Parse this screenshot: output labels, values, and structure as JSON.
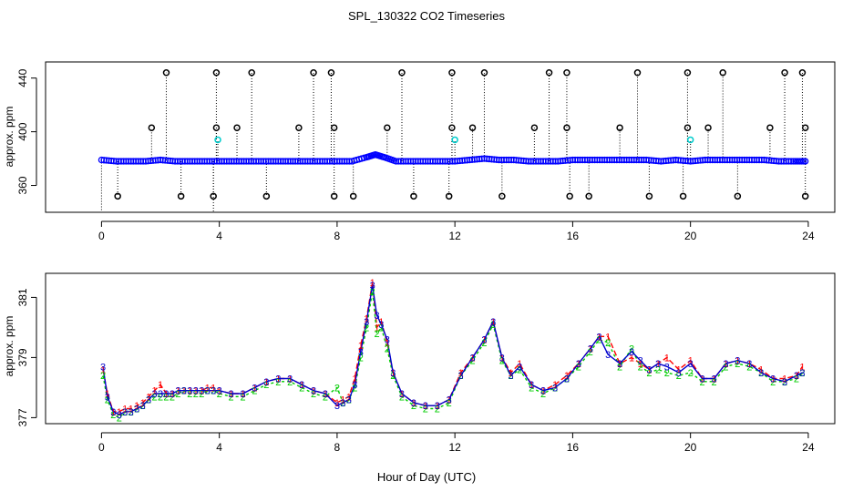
{
  "chart_data": [
    {
      "type": "scatter",
      "panel": "top",
      "title": "SPL_130322  CO2 Timeseries",
      "xlabel": "",
      "ylabel": "approx. ppm",
      "xlim": [
        -1.9,
        24.9
      ],
      "ylim": [
        340,
        452
      ],
      "xticks": [
        0,
        4,
        8,
        12,
        16,
        20,
        24
      ],
      "xtick_labels": [
        "0",
        "4",
        "8",
        "12",
        "16",
        "20",
        "24"
      ],
      "yticks": [
        360,
        400,
        440
      ],
      "ytick_labels": [
        "360",
        "400",
        "440"
      ],
      "grid": false,
      "colors": {
        "baseline": "#0000ff",
        "upper": "#000000",
        "mid_upper": "#000000",
        "lower": "#000000",
        "mid_alt": "#00cccc",
        "drop": "#000000"
      },
      "series": [
        {
          "name": "baseline",
          "x": [
            0.0,
            0.5,
            1.0,
            1.5,
            2.0,
            2.5,
            3.0,
            3.5,
            4.0,
            4.5,
            5.0,
            5.5,
            6.0,
            6.5,
            7.0,
            7.5,
            8.0,
            8.5,
            9.0,
            9.3,
            9.6,
            10.0,
            10.5,
            11.0,
            11.5,
            12.0,
            12.5,
            13.0,
            13.5,
            14.0,
            14.5,
            15.0,
            15.5,
            16.0,
            16.5,
            17.0,
            17.5,
            18.0,
            18.5,
            19.0,
            19.5,
            20.0,
            20.5,
            21.0,
            21.5,
            22.0,
            22.5,
            23.0,
            23.5,
            23.9
          ],
          "values": [
            379,
            378,
            378,
            378,
            379,
            378,
            378,
            378,
            378,
            378,
            378,
            378,
            378,
            378,
            378,
            378,
            378,
            378,
            381,
            383,
            381,
            378,
            378,
            378,
            378,
            378,
            379,
            380,
            379,
            379,
            378,
            378,
            378,
            379,
            379,
            379,
            379,
            379,
            379,
            378,
            379,
            378,
            379,
            379,
            379,
            379,
            379,
            378,
            378,
            378
          ]
        },
        {
          "name": "upper",
          "x": [
            2.2,
            3.9,
            5.1,
            7.2,
            7.8,
            10.2,
            11.9,
            13.0,
            15.2,
            15.8,
            18.2,
            19.9,
            21.1,
            23.2,
            23.8
          ],
          "values": [
            444,
            444,
            444,
            444,
            444,
            444,
            444,
            444,
            444,
            444,
            444,
            444,
            444,
            444,
            444
          ]
        },
        {
          "name": "mid_upper",
          "x": [
            1.7,
            3.9,
            4.6,
            6.7,
            7.9,
            9.7,
            11.9,
            12.6,
            14.7,
            15.8,
            17.6,
            19.9,
            20.6,
            22.7,
            23.9
          ],
          "values": [
            403,
            403,
            403,
            403,
            403,
            403,
            403,
            403,
            403,
            403,
            403,
            403,
            403,
            403,
            403
          ]
        },
        {
          "name": "mid_alt",
          "x": [
            3.95,
            12.0,
            20.0
          ],
          "values": [
            394,
            394,
            394
          ]
        },
        {
          "name": "lower",
          "x": [
            0.55,
            2.7,
            3.8,
            5.6,
            7.9,
            8.55,
            10.6,
            11.8,
            13.6,
            15.9,
            16.55,
            18.6,
            19.75,
            21.6,
            23.9
          ],
          "values": [
            352,
            352,
            352,
            352,
            352,
            352,
            352,
            352,
            352,
            352,
            352,
            352,
            352,
            352,
            352
          ]
        },
        {
          "name": "drop",
          "x": [
            0.0,
            3.8
          ],
          "values": [
            340,
            340
          ]
        }
      ]
    },
    {
      "type": "line",
      "panel": "bottom",
      "title": "",
      "xlabel": "Hour of Day (UTC)",
      "ylabel": "approx. ppm",
      "xlim": [
        -1.9,
        24.9
      ],
      "ylim": [
        376.8,
        381.8
      ],
      "xticks": [
        0,
        4,
        8,
        12,
        16,
        20,
        24
      ],
      "xtick_labels": [
        "0",
        "4",
        "8",
        "12",
        "16",
        "20",
        "24"
      ],
      "yticks": [
        377,
        379,
        381
      ],
      "ytick_labels": [
        "377",
        "379",
        "381"
      ],
      "grid": false,
      "colors": {
        "1": "#ff0000",
        "2": "#00cc00",
        "3": "#0000cc"
      },
      "x": [
        0.05,
        0.2,
        0.4,
        0.6,
        0.8,
        1.0,
        1.2,
        1.4,
        1.6,
        1.8,
        2.0,
        2.2,
        2.4,
        2.6,
        2.8,
        3.0,
        3.2,
        3.4,
        3.6,
        3.8,
        4.0,
        4.4,
        4.8,
        5.2,
        5.6,
        6.0,
        6.4,
        6.8,
        7.2,
        7.6,
        8.0,
        8.2,
        8.4,
        8.6,
        8.8,
        9.0,
        9.2,
        9.35,
        9.5,
        9.7,
        9.9,
        10.2,
        10.6,
        11.0,
        11.4,
        11.8,
        12.2,
        12.6,
        13.0,
        13.3,
        13.6,
        13.9,
        14.2,
        14.6,
        15.0,
        15.4,
        15.8,
        16.2,
        16.6,
        16.9,
        17.2,
        17.6,
        18.0,
        18.3,
        18.6,
        18.9,
        19.2,
        19.6,
        20.0,
        20.4,
        20.8,
        21.2,
        21.6,
        22.0,
        22.4,
        22.8,
        23.2,
        23.6,
        23.8
      ],
      "series": [
        {
          "name": "1",
          "label": "1",
          "values": [
            378.6,
            377.8,
            377.2,
            377.2,
            377.3,
            377.3,
            377.4,
            377.5,
            377.7,
            377.9,
            378.1,
            377.8,
            377.8,
            377.9,
            377.9,
            377.9,
            377.9,
            377.9,
            378.0,
            378.0,
            377.9,
            377.8,
            377.8,
            378.0,
            378.2,
            378.3,
            378.3,
            378.1,
            377.9,
            377.8,
            377.5,
            377.6,
            377.7,
            378.3,
            379.4,
            380.3,
            381.5,
            380.0,
            380.2,
            379.5,
            378.5,
            377.8,
            377.5,
            377.4,
            377.4,
            377.6,
            378.5,
            379.0,
            379.6,
            380.2,
            379.0,
            378.5,
            378.8,
            378.1,
            377.9,
            378.1,
            378.4,
            378.8,
            379.3,
            379.7,
            379.7,
            378.8,
            379.0,
            378.8,
            378.6,
            378.8,
            379.0,
            378.6,
            378.9,
            378.3,
            378.3,
            378.8,
            378.9,
            378.8,
            378.6,
            378.3,
            378.3,
            378.4,
            378.7
          ]
        },
        {
          "name": "2",
          "label": "2",
          "values": [
            378.4,
            377.6,
            377.1,
            377.0,
            377.2,
            377.2,
            377.3,
            377.4,
            377.6,
            377.7,
            377.7,
            377.7,
            377.7,
            377.8,
            377.9,
            377.8,
            377.8,
            377.8,
            377.9,
            377.9,
            377.8,
            377.7,
            377.7,
            377.9,
            378.1,
            378.2,
            378.2,
            378.0,
            377.8,
            377.7,
            378.0,
            377.5,
            377.6,
            378.0,
            379.0,
            380.0,
            381.2,
            379.8,
            380.0,
            379.3,
            378.4,
            377.7,
            377.4,
            377.3,
            377.3,
            377.5,
            378.4,
            378.9,
            379.5,
            380.1,
            378.9,
            378.4,
            378.6,
            378.0,
            377.8,
            378.0,
            378.3,
            378.7,
            379.2,
            379.6,
            379.5,
            378.7,
            379.3,
            378.7,
            378.5,
            378.6,
            378.5,
            378.4,
            378.5,
            378.2,
            378.2,
            378.7,
            378.8,
            378.7,
            378.5,
            378.2,
            378.2,
            378.3,
            378.5
          ]
        },
        {
          "name": "3",
          "label": "3",
          "values": [
            378.7,
            377.7,
            377.2,
            377.1,
            377.2,
            377.2,
            377.3,
            377.4,
            377.6,
            377.8,
            377.8,
            377.8,
            377.8,
            377.9,
            377.9,
            377.9,
            377.9,
            377.9,
            377.9,
            377.9,
            377.9,
            377.8,
            377.8,
            378.0,
            378.2,
            378.3,
            378.3,
            378.1,
            377.9,
            377.8,
            377.4,
            377.5,
            377.6,
            378.1,
            379.2,
            380.2,
            381.4,
            380.4,
            380.1,
            379.6,
            378.5,
            377.8,
            377.5,
            377.4,
            377.4,
            377.6,
            378.4,
            379.0,
            379.6,
            380.2,
            379.0,
            378.4,
            378.7,
            378.1,
            377.9,
            378.0,
            378.3,
            378.8,
            379.3,
            379.7,
            379.1,
            378.8,
            379.2,
            378.9,
            378.6,
            378.8,
            378.7,
            378.5,
            378.8,
            378.3,
            378.3,
            378.8,
            378.9,
            378.8,
            378.5,
            378.3,
            378.2,
            378.4,
            378.5
          ]
        }
      ]
    }
  ]
}
